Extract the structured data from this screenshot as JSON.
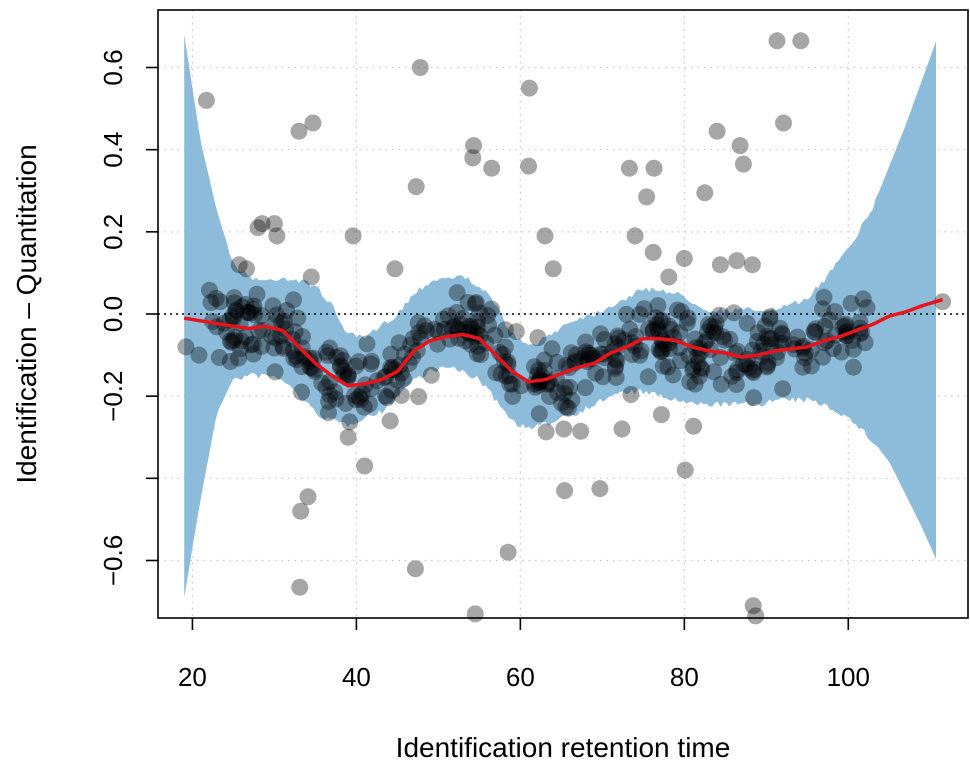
{
  "chart_data": {
    "type": "scatter",
    "xlabel": "Identification retention time",
    "ylabel": "Identification – Quantitation",
    "xlim": [
      15.8,
      114.6
    ],
    "ylim": [
      -0.74,
      0.74
    ],
    "x_ticks": [
      20,
      40,
      60,
      80,
      100
    ],
    "y_ticks": [
      -0.6,
      -0.4,
      -0.2,
      0.0,
      0.2,
      0.4,
      0.6
    ],
    "y_tick_labels": [
      "−0.6",
      "",
      "−0.2",
      "0.0",
      "0.2",
      "0.4",
      "0.6"
    ],
    "x_tick_labels": [
      "20",
      "40",
      "60",
      "80",
      "100"
    ],
    "grid": true,
    "reference_line": 0,
    "colors": {
      "band": "#8dbcdb",
      "trend": "#e8141b",
      "points": "#000000",
      "grid": "#c8c8c8"
    },
    "trend": {
      "x": [
        19,
        22,
        25,
        27,
        29,
        31,
        33,
        35,
        37,
        39,
        41,
        43,
        45,
        47,
        49,
        51,
        53,
        55,
        57,
        59,
        61,
        63,
        65,
        67,
        69,
        71,
        73,
        75,
        77,
        79,
        81,
        83,
        85,
        87,
        89,
        91,
        93,
        95,
        97,
        99,
        101,
        103,
        105,
        107,
        109,
        111.5
      ],
      "y": [
        -0.01,
        -0.02,
        -0.03,
        -0.035,
        -0.03,
        -0.04,
        -0.08,
        -0.12,
        -0.15,
        -0.175,
        -0.17,
        -0.16,
        -0.14,
        -0.09,
        -0.065,
        -0.055,
        -0.05,
        -0.06,
        -0.1,
        -0.14,
        -0.165,
        -0.16,
        -0.145,
        -0.13,
        -0.12,
        -0.095,
        -0.08,
        -0.06,
        -0.06,
        -0.065,
        -0.08,
        -0.09,
        -0.095,
        -0.105,
        -0.1,
        -0.09,
        -0.085,
        -0.08,
        -0.065,
        -0.055,
        -0.04,
        -0.025,
        -0.005,
        0.005,
        0.02,
        0.035
      ]
    },
    "band": {
      "x": [
        19,
        21,
        23,
        25,
        27,
        29,
        31,
        33,
        35,
        37,
        39,
        41,
        43,
        45,
        47,
        49,
        51,
        53,
        55,
        57,
        59,
        61,
        63,
        65,
        67,
        69,
        71,
        73,
        75,
        77,
        79,
        81,
        83,
        85,
        87,
        89,
        91,
        93,
        95,
        97,
        99,
        101,
        103,
        105,
        107,
        109,
        111
      ],
      "upper": [
        0.68,
        0.42,
        0.25,
        0.12,
        0.09,
        0.08,
        0.09,
        0.08,
        0.07,
        0.02,
        -0.05,
        -0.06,
        -0.03,
        0.0,
        0.05,
        0.08,
        0.09,
        0.09,
        0.07,
        0.02,
        -0.05,
        -0.08,
        -0.06,
        -0.03,
        -0.01,
        0.0,
        0.02,
        0.04,
        0.06,
        0.06,
        0.05,
        0.03,
        0.01,
        0.01,
        0.01,
        0.01,
        0.01,
        0.02,
        0.04,
        0.08,
        0.14,
        0.19,
        0.26,
        0.36,
        0.46,
        0.57,
        0.68
      ],
      "lower": [
        -0.69,
        -0.45,
        -0.24,
        -0.16,
        -0.15,
        -0.15,
        -0.16,
        -0.2,
        -0.24,
        -0.26,
        -0.27,
        -0.25,
        -0.24,
        -0.2,
        -0.16,
        -0.14,
        -0.13,
        -0.14,
        -0.16,
        -0.21,
        -0.26,
        -0.28,
        -0.27,
        -0.25,
        -0.24,
        -0.22,
        -0.2,
        -0.19,
        -0.19,
        -0.2,
        -0.21,
        -0.22,
        -0.22,
        -0.22,
        -0.22,
        -0.22,
        -0.21,
        -0.21,
        -0.21,
        -0.22,
        -0.24,
        -0.27,
        -0.31,
        -0.36,
        -0.44,
        -0.52,
        -0.61
      ]
    },
    "outliers": [
      [
        19.2,
        -0.08
      ],
      [
        20.8,
        -0.1
      ],
      [
        21.7,
        0.52
      ],
      [
        23.4,
        0.03
      ],
      [
        25.1,
        0.04
      ],
      [
        25.7,
        0.12
      ],
      [
        26.6,
        0.11
      ],
      [
        28.0,
        0.21
      ],
      [
        28.5,
        0.22
      ],
      [
        30.0,
        0.22
      ],
      [
        30.3,
        0.19
      ],
      [
        33.0,
        0.445
      ],
      [
        34.7,
        0.465
      ],
      [
        34.5,
        0.09
      ],
      [
        33.3,
        -0.19
      ],
      [
        33.2,
        -0.48
      ],
      [
        34.1,
        -0.445
      ],
      [
        33.1,
        -0.665
      ],
      [
        36.6,
        -0.24
      ],
      [
        39.0,
        -0.3
      ],
      [
        39.6,
        0.19
      ],
      [
        41.0,
        -0.37
      ],
      [
        44.7,
        0.11
      ],
      [
        47.3,
        0.31
      ],
      [
        47.8,
        0.6
      ],
      [
        47.2,
        -0.62
      ],
      [
        54.3,
        0.41
      ],
      [
        54.2,
        0.38
      ],
      [
        54.5,
        -0.73
      ],
      [
        56.5,
        0.355
      ],
      [
        58.5,
        -0.58
      ],
      [
        61.0,
        0.36
      ],
      [
        61.1,
        0.55
      ],
      [
        63.0,
        0.19
      ],
      [
        64.0,
        0.11
      ],
      [
        65.3,
        -0.28
      ],
      [
        65.4,
        -0.43
      ],
      [
        69.7,
        -0.425
      ],
      [
        72.4,
        -0.28
      ],
      [
        73.3,
        0.355
      ],
      [
        74.0,
        0.19
      ],
      [
        75.4,
        0.285
      ],
      [
        76.2,
        0.15
      ],
      [
        76.3,
        0.355
      ],
      [
        77.2,
        -0.245
      ],
      [
        78.1,
        0.09
      ],
      [
        80.0,
        0.135
      ],
      [
        80.1,
        -0.38
      ],
      [
        82.5,
        0.295
      ],
      [
        84.0,
        0.445
      ],
      [
        84.4,
        0.12
      ],
      [
        86.4,
        0.13
      ],
      [
        86.8,
        0.41
      ],
      [
        87.2,
        0.365
      ],
      [
        88.3,
        0.12
      ],
      [
        88.4,
        -0.71
      ],
      [
        88.7,
        -0.735
      ],
      [
        91.3,
        0.665
      ],
      [
        92.1,
        0.465
      ],
      [
        94.2,
        0.665
      ],
      [
        111.5,
        0.03
      ]
    ],
    "dense_cloud": {
      "x_range": [
        22,
        103
      ],
      "count": 420,
      "spread": 0.045
    }
  }
}
